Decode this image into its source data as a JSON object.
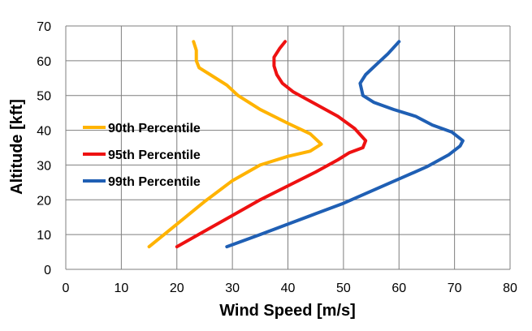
{
  "chart_data": {
    "type": "line",
    "title": "",
    "xlabel": "Wind Speed [m/s]",
    "ylabel": "Altitude [kft]",
    "xlim": [
      0,
      80
    ],
    "ylim": [
      0,
      70
    ],
    "xticks": [
      0,
      10,
      20,
      30,
      40,
      50,
      60,
      70,
      80
    ],
    "yticks": [
      0,
      10,
      20,
      30,
      40,
      50,
      60,
      70
    ],
    "grid": true,
    "legend_position": "left-center",
    "series": [
      {
        "name": "90th Percentile",
        "color": "#FFB300",
        "points": [
          [
            15,
            6.5
          ],
          [
            20,
            13
          ],
          [
            25,
            19.5
          ],
          [
            30,
            25.5
          ],
          [
            35,
            30
          ],
          [
            40,
            32.5
          ],
          [
            44,
            34
          ],
          [
            46,
            36
          ],
          [
            44,
            39
          ],
          [
            40,
            42
          ],
          [
            35,
            46
          ],
          [
            31,
            50
          ],
          [
            29,
            53
          ],
          [
            26,
            56
          ],
          [
            24,
            58
          ],
          [
            23.5,
            60
          ],
          [
            23.5,
            63
          ],
          [
            23,
            65.5
          ]
        ]
      },
      {
        "name": "95th Percentile",
        "color": "#EE1111",
        "points": [
          [
            20,
            6.5
          ],
          [
            25,
            11
          ],
          [
            30,
            15.5
          ],
          [
            35,
            20
          ],
          [
            40,
            24
          ],
          [
            45,
            28
          ],
          [
            49,
            31.5
          ],
          [
            51,
            33.5
          ],
          [
            53.5,
            35
          ],
          [
            54,
            37
          ],
          [
            52,
            40.5
          ],
          [
            49,
            44
          ],
          [
            45,
            47.5
          ],
          [
            41,
            51
          ],
          [
            39,
            53.5
          ],
          [
            38,
            56
          ],
          [
            37.5,
            58.5
          ],
          [
            37.5,
            61
          ],
          [
            38.5,
            63.5
          ],
          [
            39.5,
            65.5
          ]
        ]
      },
      {
        "name": "99th Percentile",
        "color": "#1F5FB4",
        "points": [
          [
            29,
            6.5
          ],
          [
            35,
            10
          ],
          [
            40,
            13
          ],
          [
            45,
            16
          ],
          [
            50,
            19
          ],
          [
            55,
            22.5
          ],
          [
            60,
            26
          ],
          [
            65,
            29.5
          ],
          [
            69,
            33
          ],
          [
            71,
            35.5
          ],
          [
            71.5,
            37
          ],
          [
            69.5,
            39.5
          ],
          [
            66,
            41.5
          ],
          [
            63,
            44
          ],
          [
            59,
            46
          ],
          [
            55.5,
            48
          ],
          [
            53.5,
            50
          ],
          [
            53,
            53.5
          ],
          [
            54,
            56
          ],
          [
            56,
            59
          ],
          [
            58,
            62
          ],
          [
            60,
            65.5
          ]
        ]
      }
    ]
  }
}
